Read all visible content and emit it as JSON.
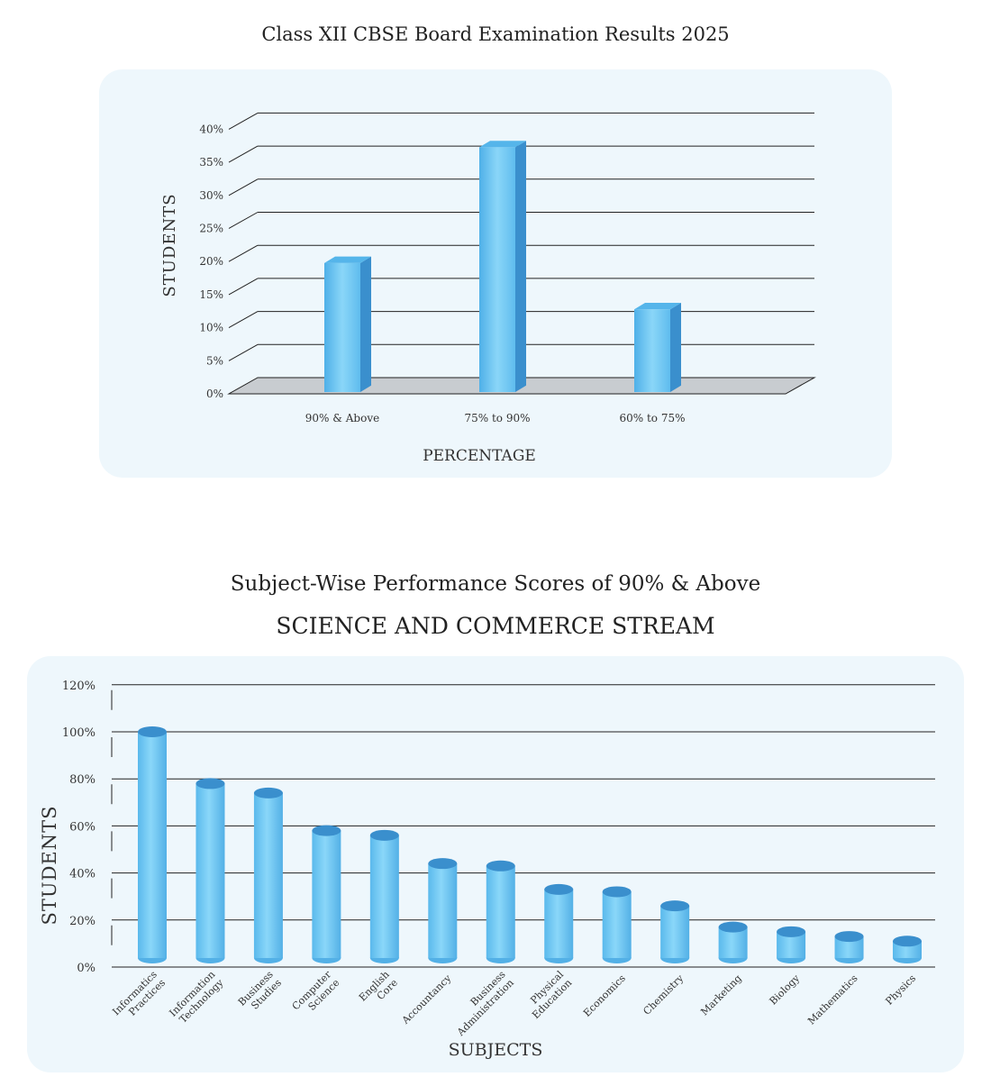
{
  "colors": {
    "bar_light": "#7fd0f7",
    "bar_mid": "#55b5ea",
    "bar_dark": "#3a8fcd",
    "floor": "#c8ccd0",
    "grid": "#222222",
    "panel": "#eef7fc"
  },
  "chart_data": [
    {
      "type": "bar",
      "title": "Class XII CBSE Board Examination Results 2025",
      "xlabel": "PERCENTAGE",
      "ylabel": "STUDENTS",
      "ylim": [
        0,
        40
      ],
      "yticks": [
        "0%",
        "5%",
        "10%",
        "15%",
        "20%",
        "25%",
        "30%",
        "35%",
        "40%"
      ],
      "categories": [
        "90% & Above",
        "75% to 90%",
        "60% to 75%"
      ],
      "values": [
        19.5,
        37,
        12.5
      ],
      "grid": true
    },
    {
      "type": "bar",
      "title": "Subject-Wise Performance Scores of 90% & Above",
      "subtitle": "SCIENCE AND COMMERCE STREAM",
      "xlabel": "SUBJECTS",
      "ylabel": "STUDENTS",
      "ylim": [
        0,
        120
      ],
      "yticks": [
        "0%",
        "20%",
        "40%",
        "60%",
        "80%",
        "100%",
        "120%"
      ],
      "categories": [
        [
          "Informatics",
          "Practices"
        ],
        [
          "Information",
          "Technology"
        ],
        [
          "Business",
          "Studies"
        ],
        [
          "Computer",
          "Science"
        ],
        [
          "English",
          "Core"
        ],
        [
          "Accountancy"
        ],
        [
          "Business",
          "Administration"
        ],
        [
          "Physical",
          "Education"
        ],
        [
          "Economics"
        ],
        [
          "Chemistry"
        ],
        [
          "Marketing"
        ],
        [
          "Biology"
        ],
        [
          "Mathematics"
        ],
        [
          "Physics"
        ]
      ],
      "values": [
        100,
        78,
        74,
        58,
        56,
        44,
        43,
        33,
        32,
        26,
        17,
        15,
        13,
        11
      ],
      "grid": true
    }
  ]
}
